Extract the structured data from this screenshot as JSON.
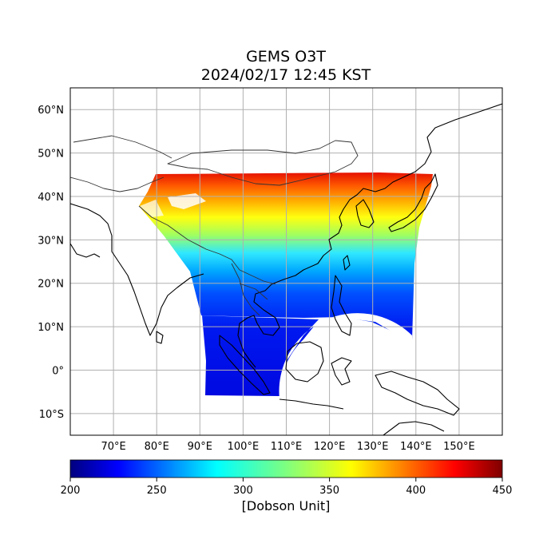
{
  "figure": {
    "title_line1": "GEMS O3T",
    "title_line2": "2024/02/17 12:45 KST"
  },
  "map": {
    "projection": "PlateCarree",
    "lon_range": [
      60,
      160
    ],
    "lat_range": [
      -15,
      65
    ],
    "lat_ticks": [
      {
        "value": 60,
        "label": "60°N"
      },
      {
        "value": 50,
        "label": "50°N"
      },
      {
        "value": 40,
        "label": "40°N"
      },
      {
        "value": 30,
        "label": "30°N"
      },
      {
        "value": 20,
        "label": "20°N"
      },
      {
        "value": 10,
        "label": "10°N"
      },
      {
        "value": 0,
        "label": "0°"
      },
      {
        "value": -10,
        "label": "10°S"
      }
    ],
    "lon_ticks": [
      {
        "value": 70,
        "label": "70°E"
      },
      {
        "value": 80,
        "label": "80°E"
      },
      {
        "value": 90,
        "label": "90°E"
      },
      {
        "value": 100,
        "label": "100°E"
      },
      {
        "value": 110,
        "label": "110°E"
      },
      {
        "value": 120,
        "label": "120°E"
      },
      {
        "value": 130,
        "label": "130°E"
      },
      {
        "value": 140,
        "label": "140°E"
      },
      {
        "value": 150,
        "label": "150°E"
      }
    ],
    "gridlines": true,
    "field": "Total column ozone (O3T)",
    "swath": {
      "north_edge_lat": 45.3,
      "south_edge_lat": -6,
      "east_edge_lon": 138.5,
      "west_edge_lon_north": 75,
      "gap_center": [
        120,
        -6
      ],
      "gap_radius_deg": 18
    }
  },
  "colorbar": {
    "colormap": "jet",
    "min": 200,
    "max": 450,
    "ticks": [
      {
        "value": 200,
        "label": "200"
      },
      {
        "value": 250,
        "label": "250"
      },
      {
        "value": 300,
        "label": "300"
      },
      {
        "value": 350,
        "label": "350"
      },
      {
        "value": 400,
        "label": "400"
      },
      {
        "value": 450,
        "label": "450"
      }
    ],
    "label": "[Dobson Unit]"
  }
}
